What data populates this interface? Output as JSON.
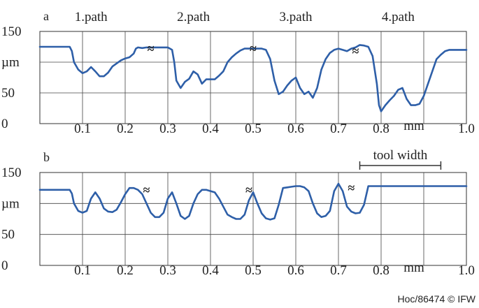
{
  "chart_data": [
    {
      "type": "line",
      "panel_label": "a",
      "x_unit": "mm",
      "y_unit": "µm",
      "xlim": [
        0,
        1.0
      ],
      "ylim": [
        0,
        150
      ],
      "x_ticks": [
        "0.1",
        "0.2",
        "0.3",
        "0.4",
        "0.5",
        "0.6",
        "0.7",
        "0.8",
        "1.0"
      ],
      "y_ticks": [
        "150",
        "50",
        "0"
      ],
      "path_labels": [
        {
          "text": "1.path",
          "x": 0.12
        },
        {
          "text": "2.path",
          "x": 0.36
        },
        {
          "text": "3.path",
          "x": 0.6
        },
        {
          "text": "4.path",
          "x": 0.84
        }
      ],
      "break_marks": [
        {
          "symbol": "≈",
          "x": 0.26,
          "y": 122
        },
        {
          "symbol": "≈",
          "x": 0.5,
          "y": 122
        },
        {
          "symbol": "≈",
          "x": 0.74,
          "y": 118
        }
      ],
      "grid": true,
      "series": [
        {
          "color": "#2e5fa8",
          "x": [
            0,
            0.07,
            0.075,
            0.08,
            0.09,
            0.1,
            0.11,
            0.12,
            0.13,
            0.14,
            0.15,
            0.16,
            0.17,
            0.18,
            0.19,
            0.2,
            0.21,
            0.22,
            0.225,
            0.23,
            0.24,
            0.25,
            0.26,
            0.27,
            0.28,
            0.29,
            0.3,
            0.31,
            0.315,
            0.32,
            0.33,
            0.34,
            0.35,
            0.36,
            0.37,
            0.38,
            0.39,
            0.4,
            0.41,
            0.42,
            0.43,
            0.44,
            0.45,
            0.46,
            0.47,
            0.48,
            0.49,
            0.5,
            0.51,
            0.52,
            0.53,
            0.54,
            0.55,
            0.56,
            0.57,
            0.58,
            0.59,
            0.6,
            0.61,
            0.62,
            0.63,
            0.64,
            0.65,
            0.66,
            0.67,
            0.68,
            0.69,
            0.7,
            0.71,
            0.72,
            0.73,
            0.74,
            0.75,
            0.76,
            0.77,
            0.78,
            0.79,
            0.795,
            0.8,
            0.81,
            0.82,
            0.83,
            0.84,
            0.85,
            0.86,
            0.87,
            0.88,
            0.89,
            0.9,
            0.91,
            0.92,
            0.93,
            0.94,
            0.95,
            0.96,
            1.0
          ],
          "y": [
            125,
            125,
            118,
            100,
            88,
            82,
            85,
            92,
            85,
            77,
            77,
            83,
            93,
            98,
            103,
            106,
            108,
            114,
            122,
            124,
            123,
            124,
            124,
            124,
            124,
            124,
            124,
            120,
            100,
            70,
            58,
            68,
            73,
            85,
            80,
            65,
            72,
            72,
            72,
            78,
            85,
            100,
            108,
            114,
            119,
            122,
            122,
            122,
            122,
            122,
            120,
            105,
            70,
            48,
            52,
            62,
            70,
            75,
            58,
            48,
            52,
            42,
            58,
            88,
            105,
            115,
            120,
            122,
            120,
            118,
            122,
            124,
            128,
            127,
            125,
            110,
            65,
            30,
            20,
            30,
            38,
            45,
            55,
            58,
            40,
            30,
            30,
            32,
            45,
            65,
            85,
            105,
            112,
            118,
            120,
            120
          ]
        }
      ]
    },
    {
      "type": "line",
      "panel_label": "b",
      "x_unit": "mm",
      "y_unit": "µm",
      "xlim": [
        0,
        1.0
      ],
      "ylim": [
        0,
        150
      ],
      "x_ticks": [
        "0.1",
        "0.2",
        "0.3",
        "0.4",
        "0.5",
        "0.6",
        "0.7",
        "0.8",
        "1.0"
      ],
      "y_ticks": [
        "150",
        "50",
        "0"
      ],
      "annotation": {
        "text": "tool width",
        "x_start": 0.75,
        "x_end": 0.94
      },
      "break_marks": [
        {
          "symbol": "≈",
          "x": 0.25,
          "y": 122
        },
        {
          "symbol": "≈",
          "x": 0.49,
          "y": 122
        },
        {
          "symbol": "≈",
          "x": 0.73,
          "y": 125
        }
      ],
      "grid": true,
      "series": [
        {
          "color": "#2e5fa8",
          "x": [
            0,
            0.07,
            0.075,
            0.08,
            0.09,
            0.1,
            0.11,
            0.12,
            0.13,
            0.14,
            0.15,
            0.16,
            0.17,
            0.18,
            0.19,
            0.2,
            0.21,
            0.22,
            0.23,
            0.24,
            0.25,
            0.26,
            0.27,
            0.28,
            0.29,
            0.3,
            0.31,
            0.32,
            0.33,
            0.34,
            0.35,
            0.36,
            0.37,
            0.38,
            0.39,
            0.4,
            0.41,
            0.42,
            0.43,
            0.44,
            0.45,
            0.46,
            0.47,
            0.48,
            0.49,
            0.5,
            0.51,
            0.52,
            0.53,
            0.54,
            0.55,
            0.56,
            0.57,
            0.58,
            0.59,
            0.6,
            0.61,
            0.62,
            0.63,
            0.64,
            0.65,
            0.66,
            0.67,
            0.68,
            0.69,
            0.7,
            0.71,
            0.72,
            0.73,
            0.74,
            0.75,
            0.76,
            0.77,
            0.78,
            0.79,
            0.8,
            0.81,
            0.82,
            0.83,
            0.84,
            0.85,
            0.86,
            0.87,
            0.88,
            0.89,
            0.9,
            0.91,
            0.92,
            0.93,
            0.94,
            0.95,
            1.0
          ],
          "y": [
            122,
            122,
            116,
            100,
            88,
            85,
            88,
            108,
            118,
            108,
            92,
            87,
            86,
            90,
            102,
            115,
            125,
            125,
            122,
            115,
            100,
            85,
            78,
            78,
            85,
            108,
            118,
            100,
            80,
            75,
            80,
            100,
            115,
            122,
            122,
            120,
            118,
            108,
            95,
            82,
            78,
            75,
            75,
            82,
            105,
            118,
            100,
            84,
            76,
            74,
            76,
            98,
            125,
            126,
            127,
            128,
            128,
            126,
            120,
            100,
            84,
            78,
            80,
            88,
            120,
            132,
            120,
            95,
            87,
            84,
            85,
            98,
            128,
            128,
            128,
            128,
            128,
            128,
            128,
            128,
            128,
            128,
            128,
            128,
            128,
            128,
            128,
            128,
            128,
            128,
            128,
            128
          ]
        }
      ]
    }
  ],
  "credit": "Hoc/86474 © IFW"
}
